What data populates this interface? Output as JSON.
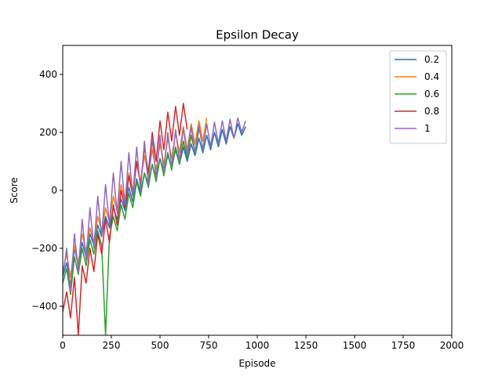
{
  "chart_data": {
    "type": "line",
    "title": "Epsilon Decay",
    "xlabel": "Episode",
    "ylabel": "Score",
    "xlim": [
      0,
      2000
    ],
    "ylim": [
      -500,
      500
    ],
    "xticks": [
      0,
      250,
      500,
      750,
      1000,
      1250,
      1500,
      1750,
      2000
    ],
    "yticks": [
      -400,
      -200,
      0,
      200,
      400
    ],
    "ytick_labels": [
      "−400",
      "−200",
      "0",
      "200",
      "400"
    ],
    "grid": false,
    "legend_position": "top-right",
    "series": [
      {
        "name": "0.2",
        "color": "#1f77b4",
        "points": [
          [
            0,
            -300
          ],
          [
            20,
            -250
          ],
          [
            40,
            -330
          ],
          [
            60,
            -200
          ],
          [
            80,
            -260
          ],
          [
            100,
            -180
          ],
          [
            120,
            -230
          ],
          [
            140,
            -150
          ],
          [
            160,
            -190
          ],
          [
            180,
            -120
          ],
          [
            200,
            -160
          ],
          [
            220,
            -90
          ],
          [
            240,
            -130
          ],
          [
            260,
            -60
          ],
          [
            280,
            -100
          ],
          [
            300,
            -30
          ],
          [
            320,
            -70
          ],
          [
            340,
            10
          ],
          [
            360,
            -40
          ],
          [
            380,
            40
          ],
          [
            400,
            -10
          ],
          [
            420,
            60
          ],
          [
            440,
            20
          ],
          [
            460,
            90
          ],
          [
            480,
            40
          ],
          [
            500,
            110
          ],
          [
            520,
            60
          ],
          [
            540,
            120
          ],
          [
            560,
            80
          ],
          [
            580,
            140
          ],
          [
            600,
            90
          ],
          [
            620,
            150
          ],
          [
            640,
            100
          ],
          [
            660,
            160
          ],
          [
            680,
            120
          ],
          [
            700,
            180
          ],
          [
            720,
            130
          ],
          [
            740,
            190
          ],
          [
            760,
            140
          ],
          [
            780,
            200
          ],
          [
            800,
            150
          ],
          [
            820,
            210
          ],
          [
            840,
            160
          ],
          [
            860,
            220
          ],
          [
            880,
            180
          ],
          [
            900,
            230
          ],
          [
            920,
            190
          ],
          [
            940,
            220
          ]
        ]
      },
      {
        "name": "0.4",
        "color": "#ff7f0e",
        "points": [
          [
            0,
            -280
          ],
          [
            20,
            -220
          ],
          [
            40,
            -300
          ],
          [
            60,
            -190
          ],
          [
            80,
            -250
          ],
          [
            100,
            -150
          ],
          [
            120,
            -210
          ],
          [
            140,
            -130
          ],
          [
            160,
            -180
          ],
          [
            180,
            -90
          ],
          [
            200,
            -140
          ],
          [
            220,
            -60
          ],
          [
            240,
            -110
          ],
          [
            260,
            -20
          ],
          [
            280,
            -70
          ],
          [
            300,
            20
          ],
          [
            320,
            -40
          ],
          [
            340,
            60
          ],
          [
            360,
            0
          ],
          [
            380,
            90
          ],
          [
            400,
            30
          ],
          [
            420,
            120
          ],
          [
            440,
            50
          ],
          [
            460,
            140
          ],
          [
            480,
            70
          ],
          [
            500,
            160
          ],
          [
            520,
            90
          ],
          [
            540,
            180
          ],
          [
            560,
            110
          ],
          [
            580,
            200
          ],
          [
            600,
            130
          ],
          [
            620,
            220
          ],
          [
            640,
            140
          ],
          [
            660,
            230
          ],
          [
            680,
            160
          ],
          [
            700,
            240
          ],
          [
            720,
            170
          ],
          [
            740,
            250
          ]
        ]
      },
      {
        "name": "0.6",
        "color": "#2ca02c",
        "points": [
          [
            0,
            -320
          ],
          [
            20,
            -270
          ],
          [
            40,
            -360
          ],
          [
            60,
            -230
          ],
          [
            80,
            -290
          ],
          [
            100,
            -200
          ],
          [
            120,
            -260
          ],
          [
            140,
            -170
          ],
          [
            160,
            -220
          ],
          [
            180,
            -140
          ],
          [
            200,
            -190
          ],
          [
            220,
            -500
          ],
          [
            240,
            -160
          ],
          [
            260,
            -90
          ],
          [
            280,
            -140
          ],
          [
            300,
            -50
          ],
          [
            320,
            -100
          ],
          [
            340,
            -10
          ],
          [
            360,
            -60
          ],
          [
            380,
            30
          ],
          [
            400,
            -20
          ],
          [
            420,
            60
          ],
          [
            440,
            10
          ],
          [
            460,
            90
          ],
          [
            480,
            30
          ],
          [
            500,
            110
          ],
          [
            520,
            50
          ],
          [
            540,
            130
          ],
          [
            560,
            70
          ],
          [
            580,
            150
          ],
          [
            600,
            90
          ],
          [
            620,
            170
          ],
          [
            640,
            110
          ],
          [
            660,
            190
          ],
          [
            680,
            130
          ],
          [
            700,
            210
          ]
        ]
      },
      {
        "name": "0.8",
        "color": "#d62728",
        "points": [
          [
            0,
            -420
          ],
          [
            20,
            -350
          ],
          [
            40,
            -440
          ],
          [
            60,
            -300
          ],
          [
            80,
            -500
          ],
          [
            100,
            -260
          ],
          [
            120,
            -320
          ],
          [
            140,
            -200
          ],
          [
            160,
            -280
          ],
          [
            180,
            -150
          ],
          [
            200,
            -220
          ],
          [
            220,
            -100
          ],
          [
            240,
            -180
          ],
          [
            260,
            -50
          ],
          [
            280,
            -120
          ],
          [
            300,
            0
          ],
          [
            320,
            -60
          ],
          [
            340,
            50
          ],
          [
            360,
            -20
          ],
          [
            380,
            100
          ],
          [
            400,
            20
          ],
          [
            420,
            150
          ],
          [
            440,
            60
          ],
          [
            460,
            200
          ],
          [
            480,
            100
          ],
          [
            500,
            240
          ],
          [
            520,
            140
          ],
          [
            540,
            270
          ],
          [
            560,
            170
          ],
          [
            580,
            290
          ],
          [
            600,
            190
          ],
          [
            620,
            300
          ],
          [
            640,
            210
          ]
        ]
      },
      {
        "name": "1",
        "color": "#9467bd",
        "points": [
          [
            0,
            -300
          ],
          [
            20,
            -200
          ],
          [
            40,
            -350
          ],
          [
            60,
            -150
          ],
          [
            80,
            -280
          ],
          [
            100,
            -100
          ],
          [
            120,
            -240
          ],
          [
            140,
            -60
          ],
          [
            160,
            -200
          ],
          [
            180,
            -20
          ],
          [
            200,
            -160
          ],
          [
            220,
            20
          ],
          [
            240,
            -120
          ],
          [
            260,
            60
          ],
          [
            280,
            -80
          ],
          [
            300,
            100
          ],
          [
            320,
            -50
          ],
          [
            340,
            130
          ],
          [
            360,
            -20
          ],
          [
            380,
            150
          ],
          [
            400,
            0
          ],
          [
            420,
            170
          ],
          [
            440,
            20
          ],
          [
            460,
            180
          ],
          [
            480,
            40
          ],
          [
            500,
            190
          ],
          [
            520,
            60
          ],
          [
            540,
            200
          ],
          [
            560,
            80
          ],
          [
            580,
            210
          ],
          [
            600,
            100
          ],
          [
            620,
            215
          ],
          [
            640,
            120
          ],
          [
            660,
            220
          ],
          [
            680,
            130
          ],
          [
            700,
            225
          ],
          [
            720,
            140
          ],
          [
            740,
            230
          ],
          [
            760,
            150
          ],
          [
            780,
            235
          ],
          [
            800,
            160
          ],
          [
            820,
            240
          ],
          [
            840,
            170
          ],
          [
            860,
            245
          ],
          [
            880,
            180
          ],
          [
            900,
            250
          ],
          [
            920,
            200
          ],
          [
            940,
            240
          ]
        ]
      }
    ]
  }
}
